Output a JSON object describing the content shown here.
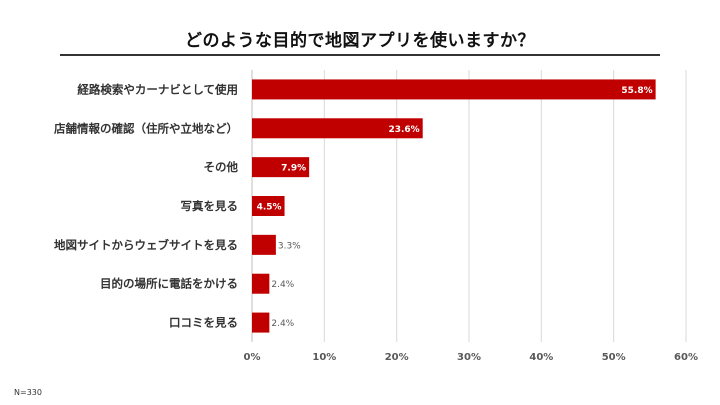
{
  "title": "どのような目的で地図アプリを使いますか？",
  "note": "N=330",
  "colors": {
    "bar": "#c00000",
    "grid": "#d9d9d9",
    "axis": "#bfbfbf",
    "label_inside": "#ffffff",
    "label_outside": "#595959"
  },
  "chart_data": {
    "type": "bar",
    "orientation": "horizontal",
    "title": "どのような目的で地図アプリを使いますか？",
    "categories": [
      "経路検索やカーナビとして使用",
      "店舗情報の確認（住所や立地など）",
      "その他",
      "写真を見る",
      "地図サイトからウェブサイトを見る",
      "目的の場所に電話をかける",
      "口コミを見る"
    ],
    "values": [
      55.8,
      23.6,
      7.9,
      4.5,
      3.3,
      2.4,
      2.4
    ],
    "data_labels": [
      "55.8%",
      "23.6%",
      "7.9%",
      "4.5%",
      "3.3%",
      "2.4%",
      "2.4%"
    ],
    "xlim": [
      0,
      60
    ],
    "xticks": [
      0,
      10,
      20,
      30,
      40,
      50,
      60
    ],
    "xtick_labels": [
      "0%",
      "10%",
      "20%",
      "30%",
      "40%",
      "50%",
      "60%"
    ],
    "xlabel": "",
    "ylabel": "",
    "grid": true
  }
}
